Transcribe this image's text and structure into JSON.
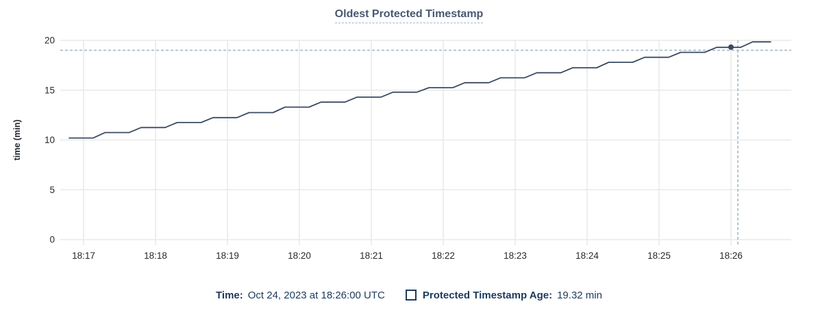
{
  "title": "Oldest Protected Timestamp",
  "y_axis_label": "time (min)",
  "legend": {
    "time_label": "Time:",
    "time_value": "Oct 24, 2023 at 18:26:00 UTC",
    "series_label": "Protected Timestamp Age:",
    "series_value": "19.32 min"
  },
  "colors": {
    "series_line": "#394a62",
    "grid_line": "#e9e9e9",
    "crosshair": "#a4b7c7",
    "title_text": "#475872",
    "title_underline": "#a3b4ca",
    "axis_text": "#24292f",
    "legend_text": "#1b3a5c"
  },
  "chart_data": {
    "type": "line",
    "title": "Oldest Protected Timestamp",
    "xlabel": "",
    "ylabel": "time (min)",
    "ylim": [
      0,
      20
    ],
    "y_ticks": [
      0,
      5,
      10,
      15,
      20
    ],
    "x_ticks": [
      "18:17",
      "18:18",
      "18:19",
      "18:20",
      "18:21",
      "18:22",
      "18:23",
      "18:24",
      "18:25",
      "18:26"
    ],
    "grid": true,
    "legend_position": "bottom",
    "series": [
      {
        "name": "Protected Timestamp Age",
        "unit": "min",
        "points": [
          {
            "t": "18:16:48",
            "v": 10.2
          },
          {
            "t": "18:17:18",
            "v": 10.75
          },
          {
            "t": "18:17:48",
            "v": 11.25
          },
          {
            "t": "18:18:18",
            "v": 11.75
          },
          {
            "t": "18:18:48",
            "v": 12.25
          },
          {
            "t": "18:19:18",
            "v": 12.75
          },
          {
            "t": "18:19:48",
            "v": 13.3
          },
          {
            "t": "18:20:18",
            "v": 13.8
          },
          {
            "t": "18:20:48",
            "v": 14.3
          },
          {
            "t": "18:21:18",
            "v": 14.8
          },
          {
            "t": "18:21:48",
            "v": 15.25
          },
          {
            "t": "18:22:18",
            "v": 15.75
          },
          {
            "t": "18:22:48",
            "v": 16.25
          },
          {
            "t": "18:23:18",
            "v": 16.75
          },
          {
            "t": "18:23:48",
            "v": 17.25
          },
          {
            "t": "18:24:18",
            "v": 17.8
          },
          {
            "t": "18:24:48",
            "v": 18.3
          },
          {
            "t": "18:25:18",
            "v": 18.8
          },
          {
            "t": "18:25:48",
            "v": 19.3
          },
          {
            "t": "18:26:18",
            "v": 19.85
          },
          {
            "t": "18:26:33",
            "v": 19.85
          }
        ]
      }
    ],
    "hover": {
      "t": "18:26:00",
      "v": 19.32
    }
  }
}
